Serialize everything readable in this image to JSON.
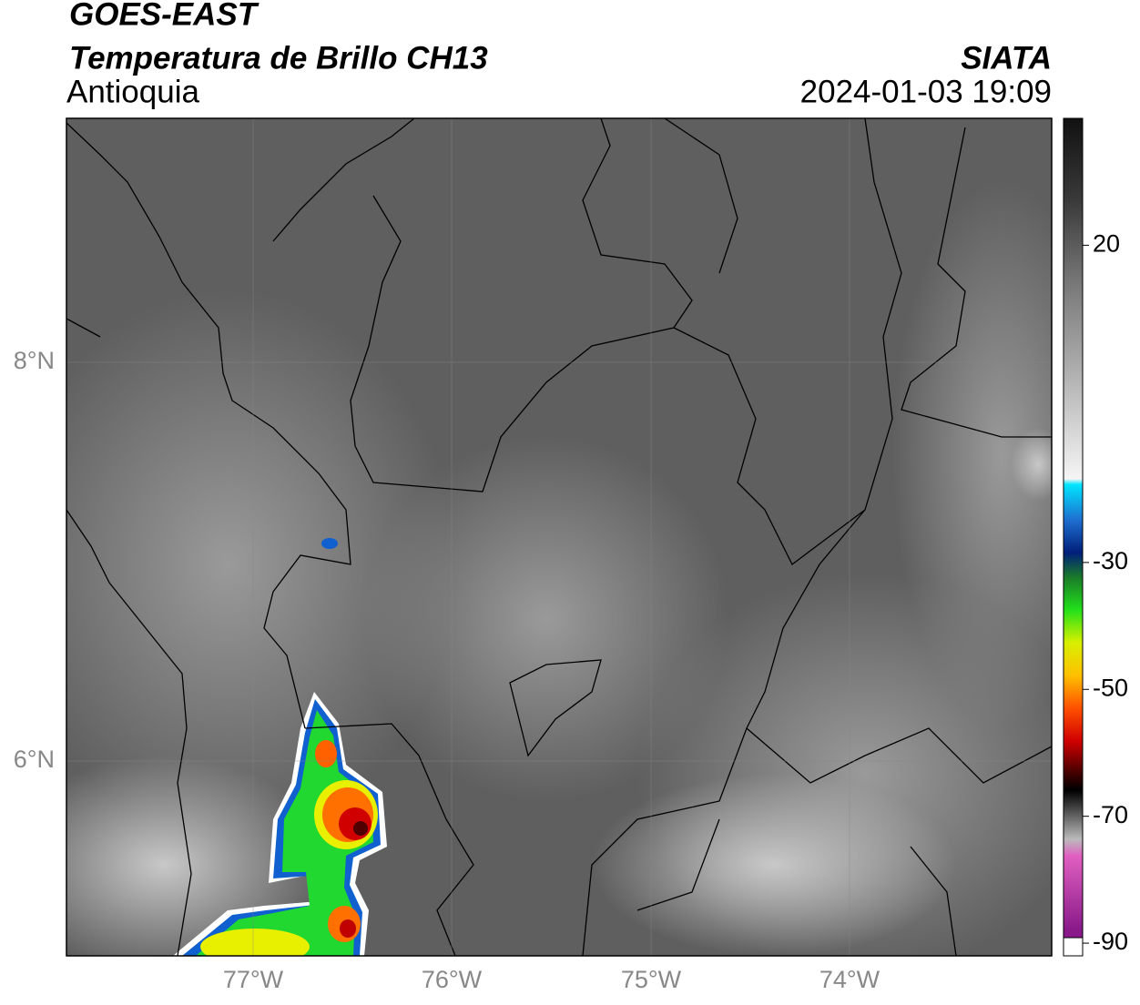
{
  "header": {
    "title": "GOES-EAST",
    "subtitle": "Temperatura de Brillo CH13",
    "region": "Antioquia",
    "source": "SIATA",
    "timestamp": "2024-01-03 19:09"
  },
  "map": {
    "lat_labels": [
      "8°N",
      "6°N"
    ],
    "lon_labels": [
      "77°W",
      "76°W",
      "75°W",
      "74°W"
    ]
  },
  "colorbar": {
    "lim": [
      -92,
      40
    ],
    "ticks": [
      20,
      -30,
      -50,
      -70,
      -90
    ]
  }
}
